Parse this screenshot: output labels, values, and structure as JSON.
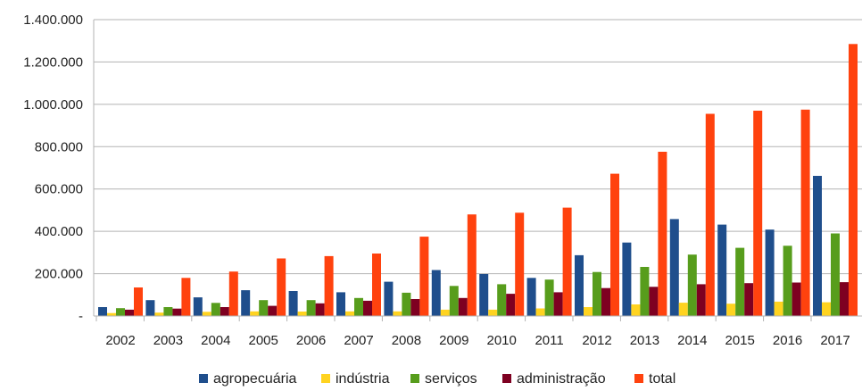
{
  "chart_data": {
    "type": "bar",
    "categories": [
      "2002",
      "2003",
      "2004",
      "2005",
      "2006",
      "2007",
      "2008",
      "2009",
      "2010",
      "2011",
      "2012",
      "2013",
      "2014",
      "2015",
      "2016",
      "2017"
    ],
    "y_ticks": [
      "-",
      "200.000",
      "400.000",
      "600.000",
      "800.000",
      "1.000.000",
      "1.200.000",
      "1.400.000"
    ],
    "ylim": [
      0,
      1400000
    ],
    "grid": true,
    "legend_position": "bottom",
    "series": [
      {
        "name": "agropecuária",
        "color": "#1f4e8c",
        "values": [
          42000,
          75000,
          88000,
          122000,
          118000,
          112000,
          162000,
          217000,
          198000,
          180000,
          287000,
          347000,
          458000,
          432000,
          408000,
          662000
        ]
      },
      {
        "name": "indústria",
        "color": "#ffd320",
        "values": [
          14000,
          16000,
          20000,
          22000,
          21000,
          22000,
          22000,
          30000,
          30000,
          36000,
          42000,
          55000,
          63000,
          58000,
          68000,
          65000
        ]
      },
      {
        "name": "serviços",
        "color": "#579d1c",
        "values": [
          37000,
          42000,
          62000,
          75000,
          75000,
          85000,
          110000,
          142000,
          150000,
          172000,
          208000,
          232000,
          290000,
          322000,
          332000,
          390000
        ]
      },
      {
        "name": "administração",
        "color": "#7e0021",
        "values": [
          30000,
          35000,
          42000,
          48000,
          60000,
          72000,
          80000,
          85000,
          105000,
          112000,
          132000,
          138000,
          150000,
          155000,
          158000,
          160000
        ]
      },
      {
        "name": "total",
        "color": "#ff420e",
        "values": [
          135000,
          180000,
          210000,
          272000,
          283000,
          295000,
          375000,
          480000,
          488000,
          512000,
          672000,
          776000,
          955000,
          970000,
          975000,
          1285000
        ]
      }
    ]
  }
}
